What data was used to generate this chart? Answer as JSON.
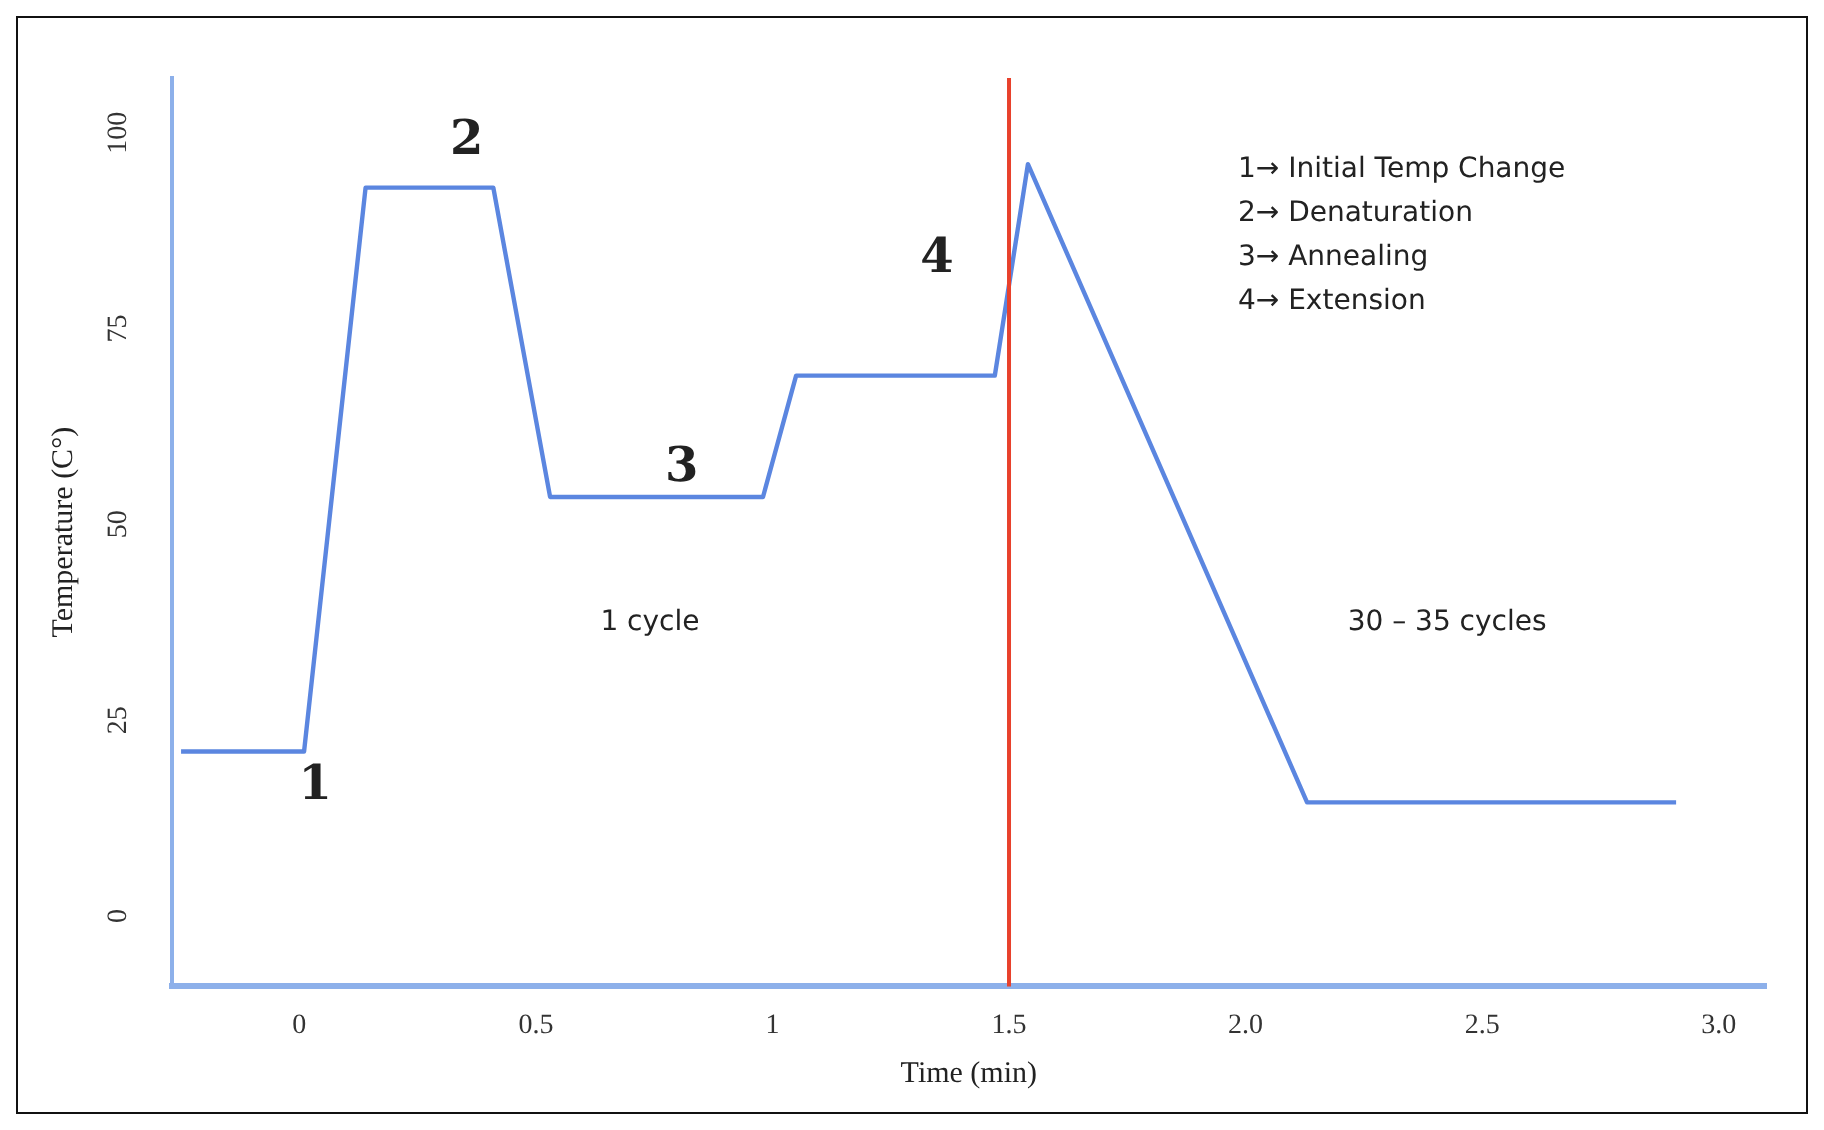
{
  "chart_data": {
    "type": "line",
    "xlabel": "Time (min)",
    "ylabel": "Temperature (C°)",
    "x": [
      -0.25,
      0.0,
      0.01,
      0.14,
      0.41,
      0.53,
      0.98,
      1.05,
      1.47,
      1.54,
      2.13,
      2.91
    ],
    "series": [
      {
        "color": "#5b86e0",
        "values": [
          21,
          21,
          21,
          93,
          93,
          53.5,
          53.5,
          69,
          69,
          96,
          14.5,
          14.5
        ]
      }
    ],
    "xlim": [
      -0.27,
      3.1
    ],
    "xticks": [
      0,
      0.5,
      1,
      1.5,
      {
        "value": 2,
        "label": "2.0"
      },
      2.5,
      {
        "value": 3,
        "label": "3.0"
      }
    ],
    "ylim": [
      -9,
      107
    ],
    "yticks": [
      0,
      25,
      50,
      75,
      100
    ],
    "grid": false,
    "legend": false,
    "marker": "none",
    "line_style": "solid",
    "ref_lines": [
      {
        "axis": "x",
        "value": 1.5,
        "color": "#e8412c"
      }
    ],
    "annotations": [
      "1",
      "2",
      "3",
      "4",
      "1 cycle",
      "30 – 35 cycles",
      "1→ Initial Temp Change",
      "2→ Denaturation",
      "3→ Annealing",
      "4→ Extension"
    ]
  }
}
